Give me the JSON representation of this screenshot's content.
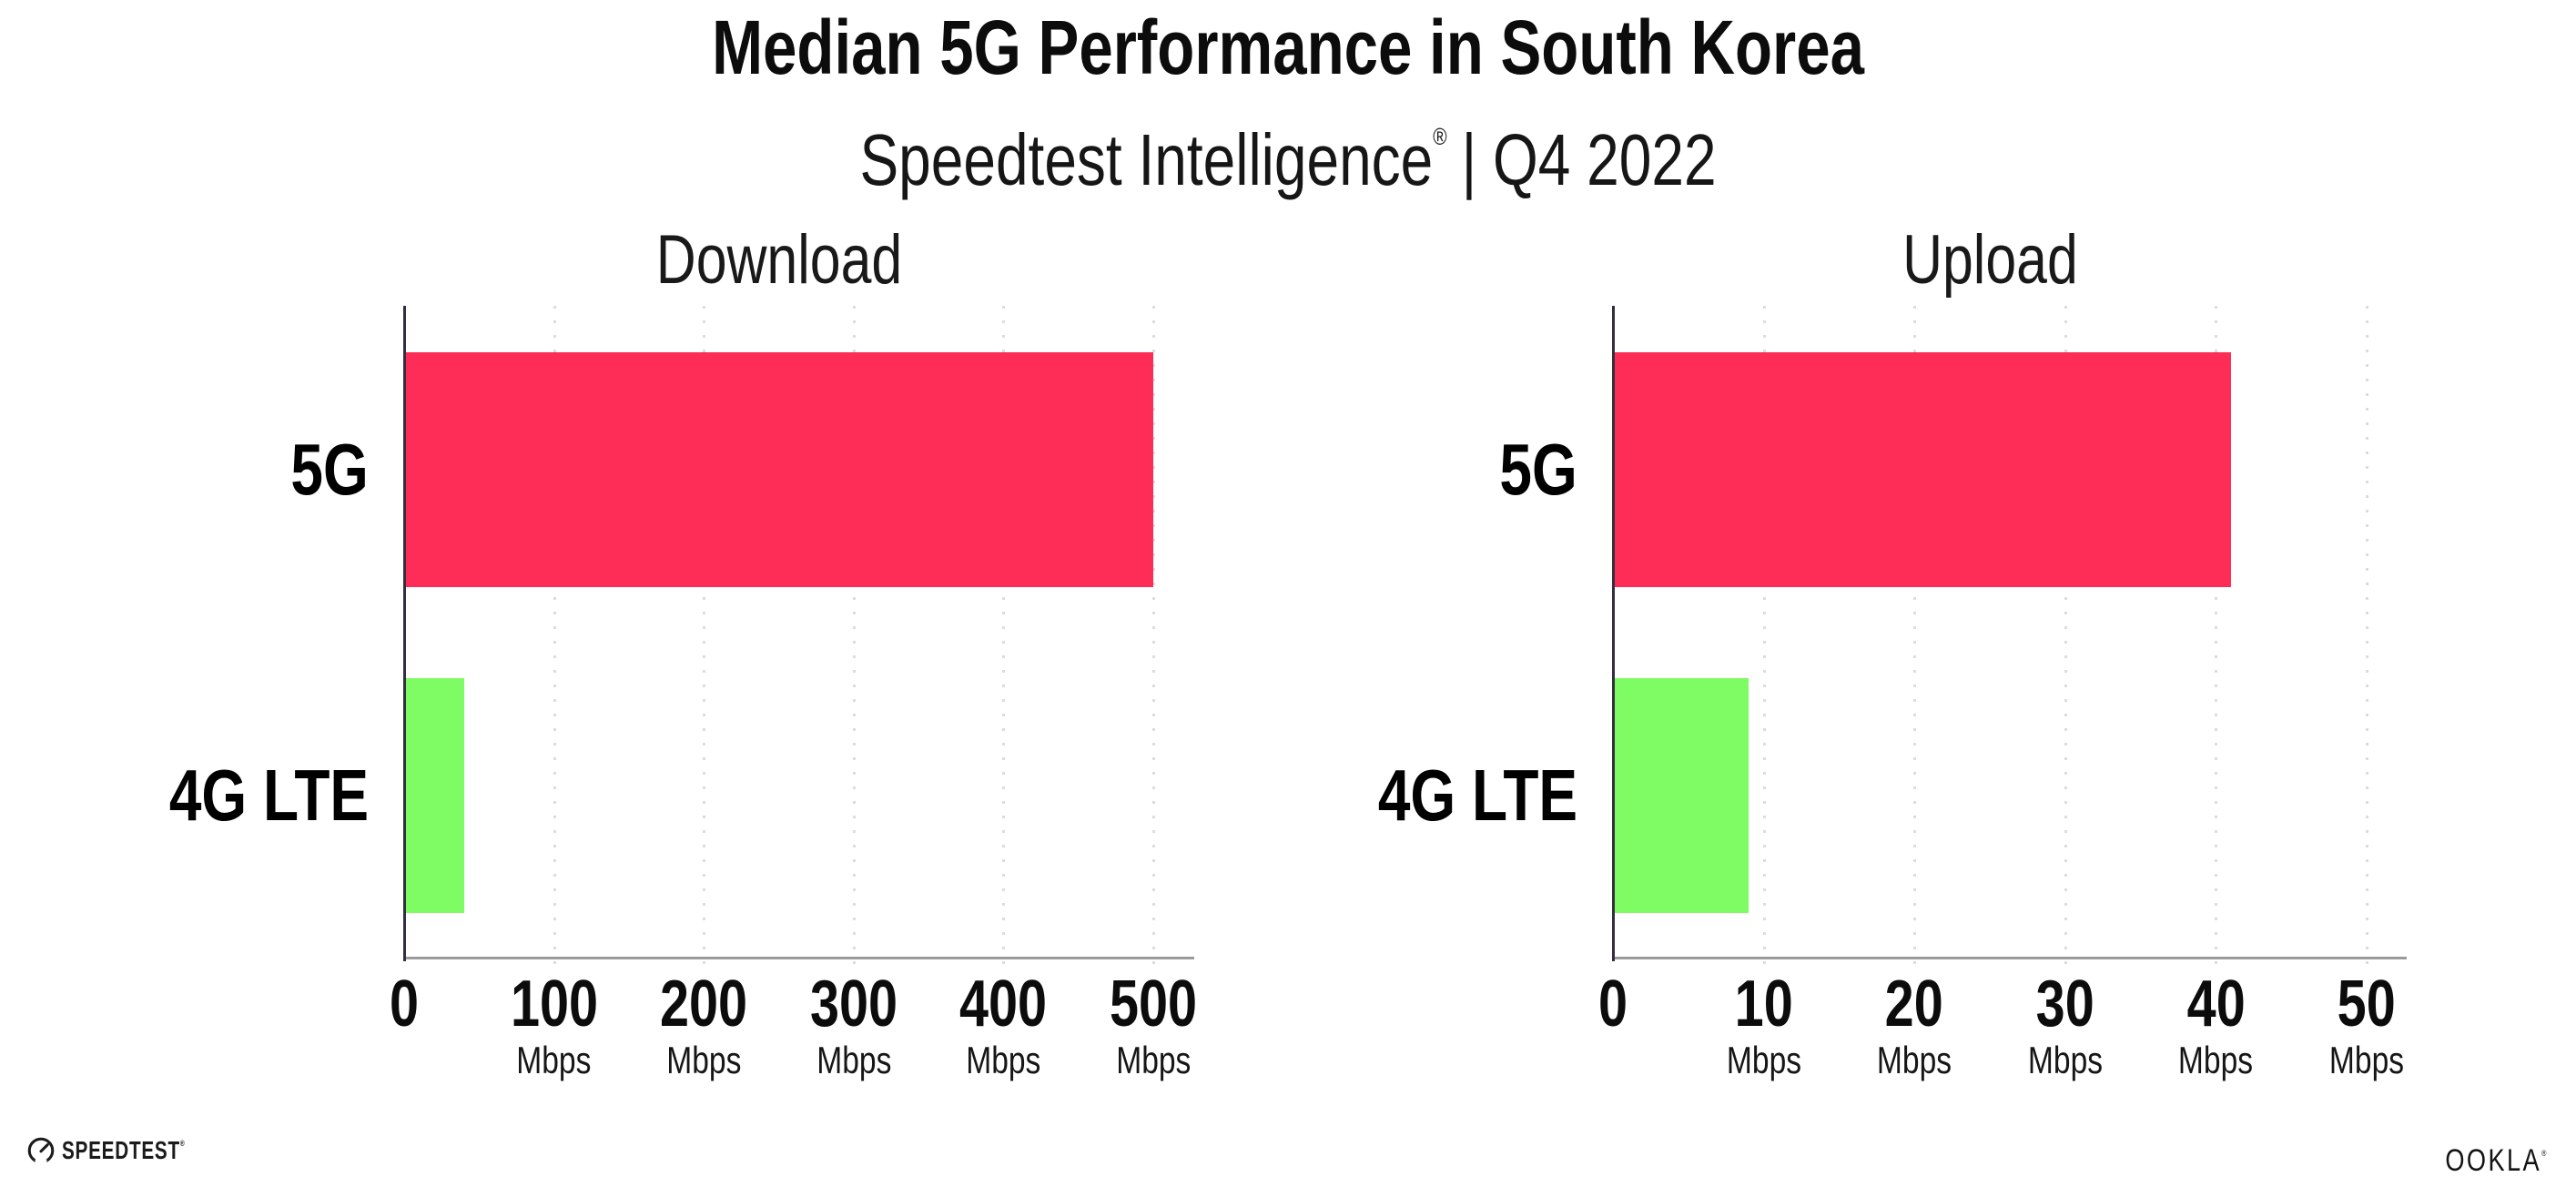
{
  "header": {
    "title": "Median 5G Performance in South Korea",
    "subtitle_product": "Speedtest Intelligence",
    "subtitle_registered": "®",
    "subtitle_period": "| Q4 2022"
  },
  "chart_data": [
    {
      "type": "bar",
      "orientation": "horizontal",
      "title": "Download",
      "categories": [
        "5G",
        "4G LTE"
      ],
      "values": [
        500,
        40
      ],
      "units": "Mbps",
      "xlim": [
        0,
        500
      ],
      "xticks": [
        0,
        100,
        200,
        300,
        400,
        500
      ],
      "tick_unit_label": "Mbps",
      "bar_colors": [
        "#fd2d57",
        "#7ffb63"
      ],
      "legend": "none",
      "grid": "vertical-dotted"
    },
    {
      "type": "bar",
      "orientation": "horizontal",
      "title": "Upload",
      "categories": [
        "5G",
        "4G LTE"
      ],
      "values": [
        41,
        9
      ],
      "units": "Mbps",
      "xlim": [
        0,
        50
      ],
      "xticks": [
        0,
        10,
        20,
        30,
        40,
        50
      ],
      "tick_unit_label": "Mbps",
      "bar_colors": [
        "#fd2d57",
        "#7ffb63"
      ],
      "legend": "none",
      "grid": "vertical-dotted"
    }
  ],
  "footer": {
    "speedtest_logo_text": "SPEEDTEST",
    "speedtest_registered": "®",
    "ookla_logo_text": "OOKLA",
    "ookla_registered": "®"
  },
  "colors": {
    "bar_5g": "#fd2d57",
    "bar_4g_lte": "#7ffb63",
    "background": "#ffffff",
    "text": "#111111",
    "grid_dot": "#dbdbe5",
    "axis_line": "#332f3e",
    "baseline": "#9a9a9a"
  }
}
